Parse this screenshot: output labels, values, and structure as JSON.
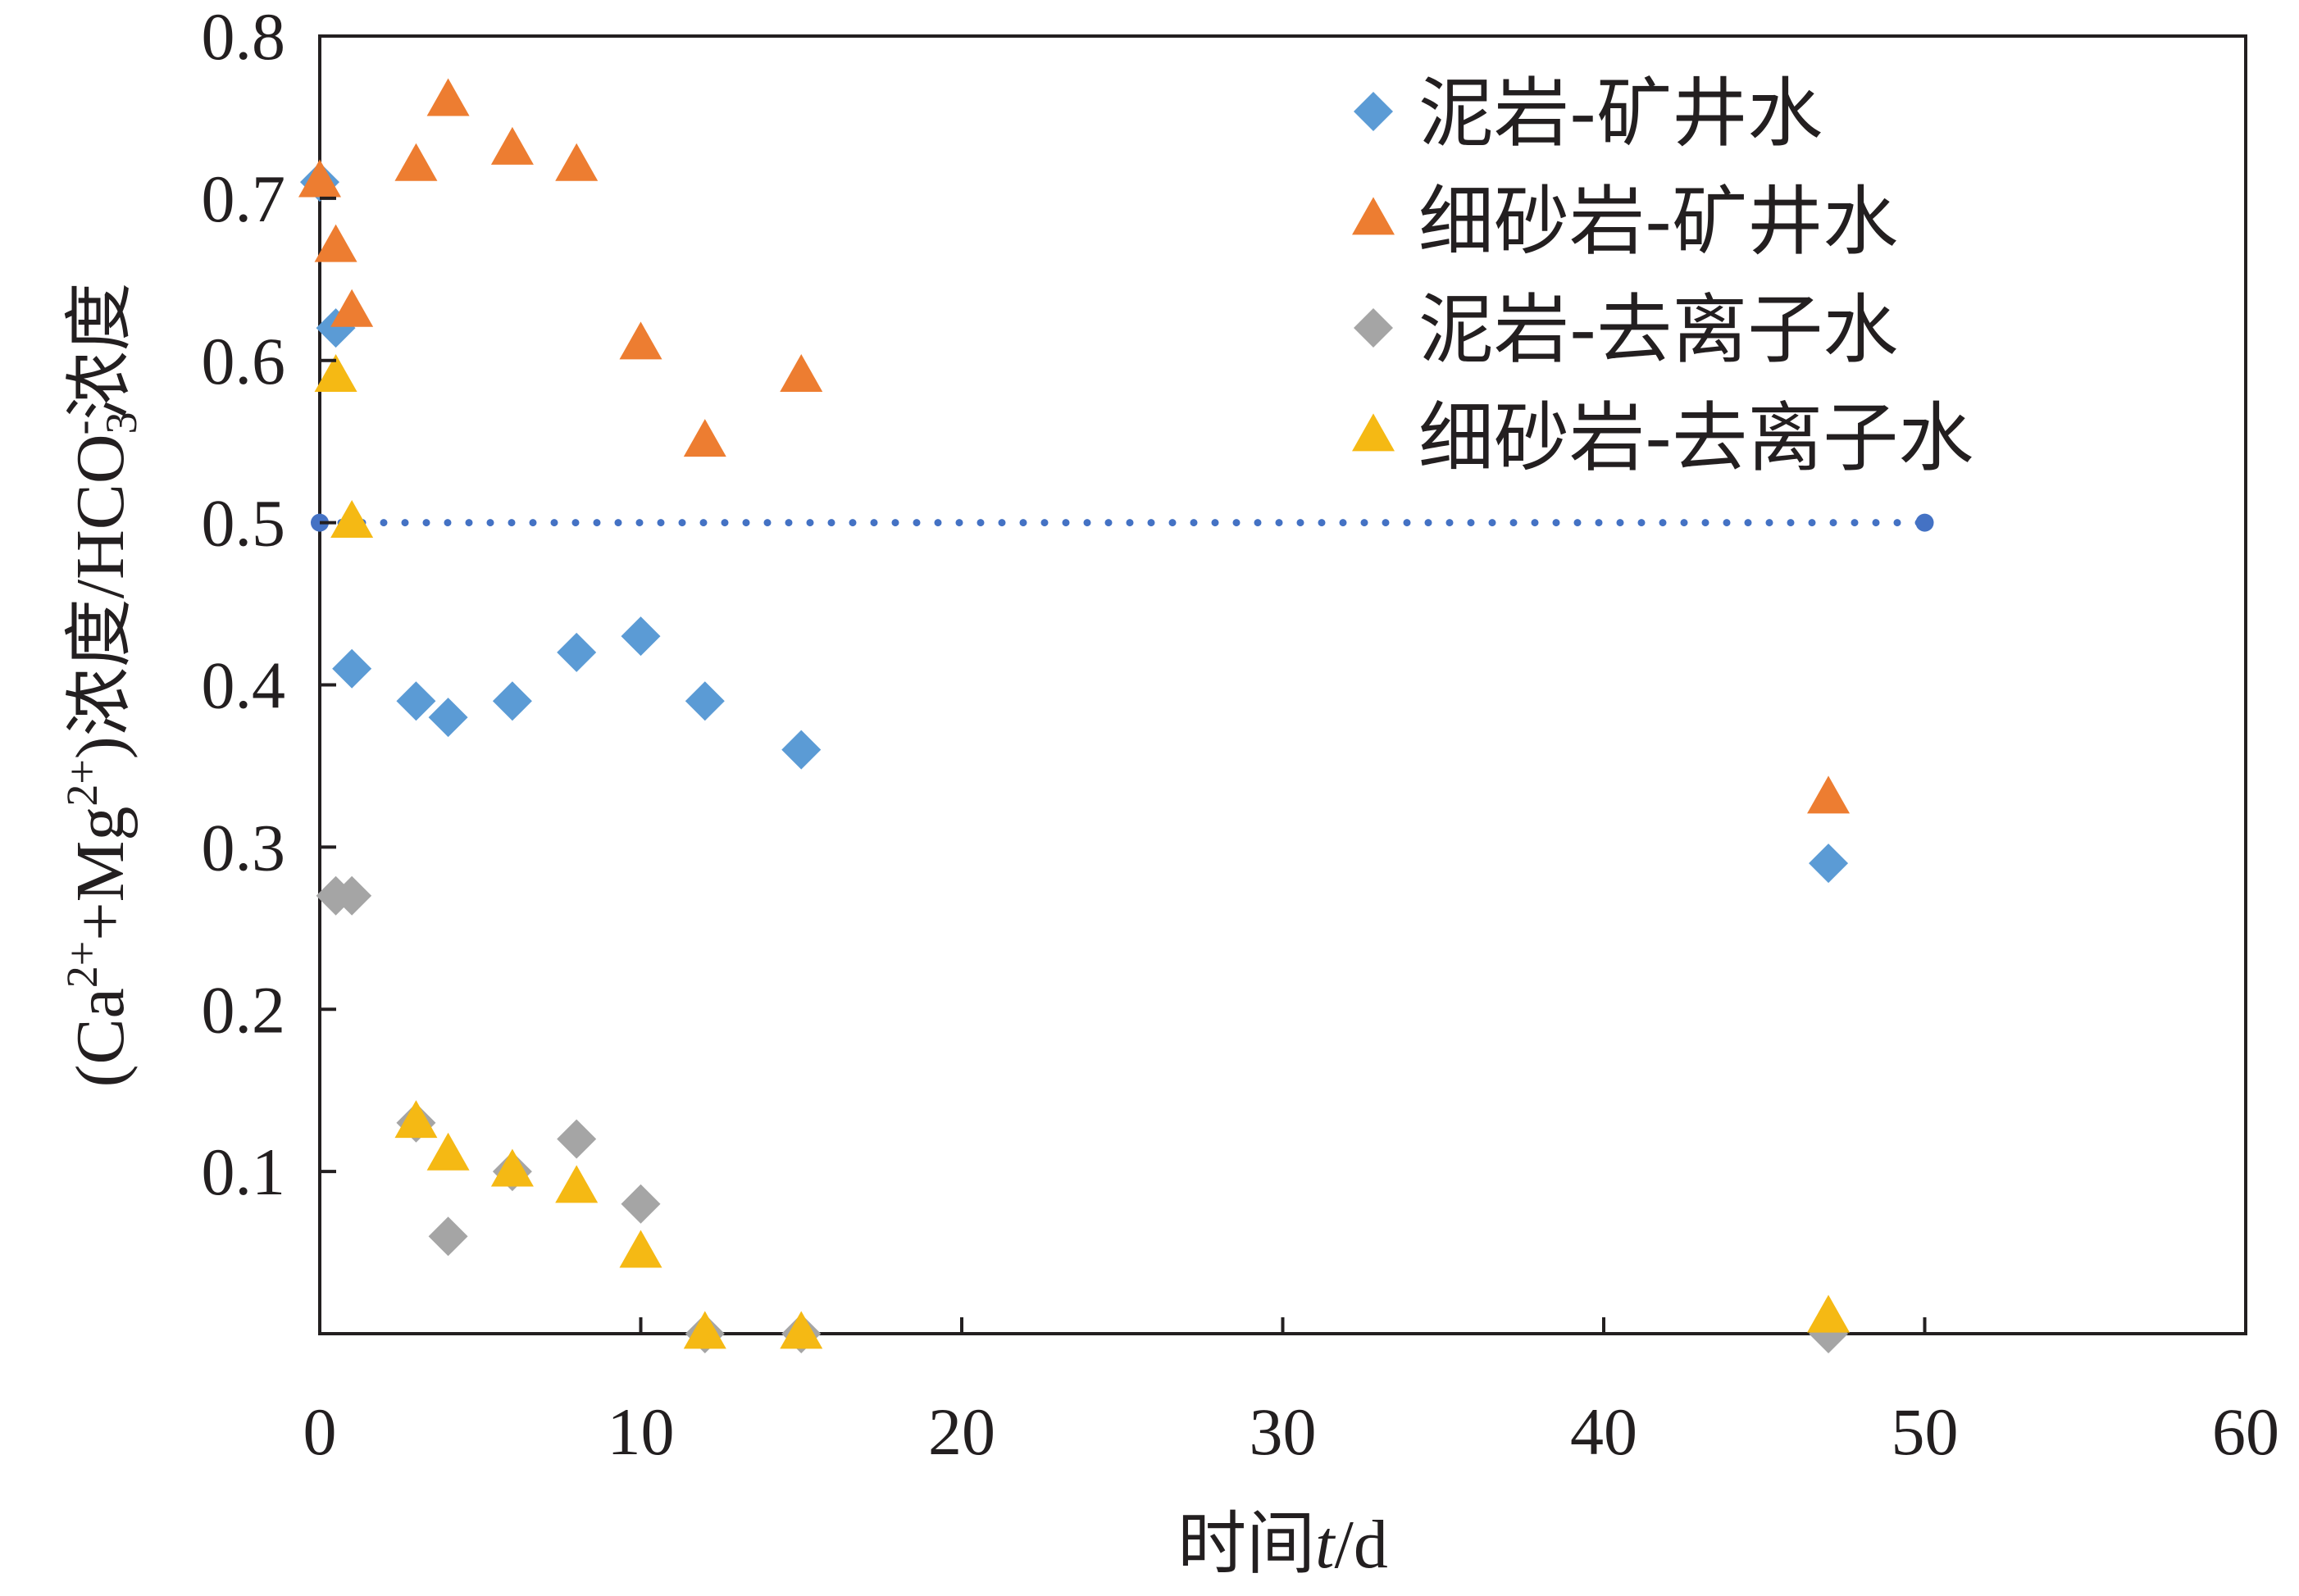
{
  "chart_data": {
    "type": "scatter",
    "xlabel": "时间t/d",
    "ylabel": "(Ca2++Mg2+)浓度/HCO3-浓度",
    "xlim": [
      0,
      60
    ],
    "ylim": [
      0,
      0.8
    ],
    "x_ticks": [
      "0",
      "10",
      "20",
      "30",
      "40",
      "50",
      "60"
    ],
    "y_ticks": [
      "0.1",
      "0.2",
      "0.3",
      "0.4",
      "0.5",
      "0.6",
      "0.7",
      "0.8"
    ],
    "grid": false,
    "legend_position": "top-right",
    "reference_line": {
      "y": 0.5,
      "x_range": [
        0,
        50
      ],
      "style": "dotted",
      "color": "#4472c4"
    },
    "series": [
      {
        "name": "泥岩-矿井水",
        "marker": "diamond",
        "color": "#5b9bd5",
        "points": [
          [
            0,
            0.71
          ],
          [
            0.5,
            0.62
          ],
          [
            1,
            0.41
          ],
          [
            3,
            0.39
          ],
          [
            4,
            0.38
          ],
          [
            6,
            0.39
          ],
          [
            8,
            0.42
          ],
          [
            10,
            0.43
          ],
          [
            12,
            0.39
          ],
          [
            15,
            0.36
          ],
          [
            47,
            0.29
          ]
        ]
      },
      {
        "name": "细砂岩-矿井水",
        "marker": "triangle",
        "color": "#ed7d31",
        "points": [
          [
            0,
            0.71
          ],
          [
            0.5,
            0.67
          ],
          [
            1,
            0.63
          ],
          [
            3,
            0.72
          ],
          [
            4,
            0.76
          ],
          [
            6,
            0.73
          ],
          [
            8,
            0.72
          ],
          [
            10,
            0.61
          ],
          [
            12,
            0.55
          ],
          [
            15,
            0.59
          ],
          [
            47,
            0.33
          ]
        ]
      },
      {
        "name": "泥岩-去离子水",
        "marker": "diamond",
        "color": "#a5a5a5",
        "points": [
          [
            0.5,
            0.27
          ],
          [
            1,
            0.27
          ],
          [
            3,
            0.13
          ],
          [
            4,
            0.06
          ],
          [
            6,
            0.1
          ],
          [
            8,
            0.12
          ],
          [
            10,
            0.08
          ],
          [
            12,
            0.0
          ],
          [
            15,
            0.0
          ],
          [
            47,
            0.0
          ]
        ]
      },
      {
        "name": "细砂岩-去离子水",
        "marker": "triangle",
        "color": "#f5b914",
        "points": [
          [
            0.5,
            0.59
          ],
          [
            1,
            0.5
          ],
          [
            3,
            0.13
          ],
          [
            4,
            0.11
          ],
          [
            6,
            0.1
          ],
          [
            8,
            0.09
          ],
          [
            10,
            0.05
          ],
          [
            12,
            0.0
          ],
          [
            15,
            0.0
          ],
          [
            47,
            0.01
          ]
        ]
      }
    ]
  }
}
